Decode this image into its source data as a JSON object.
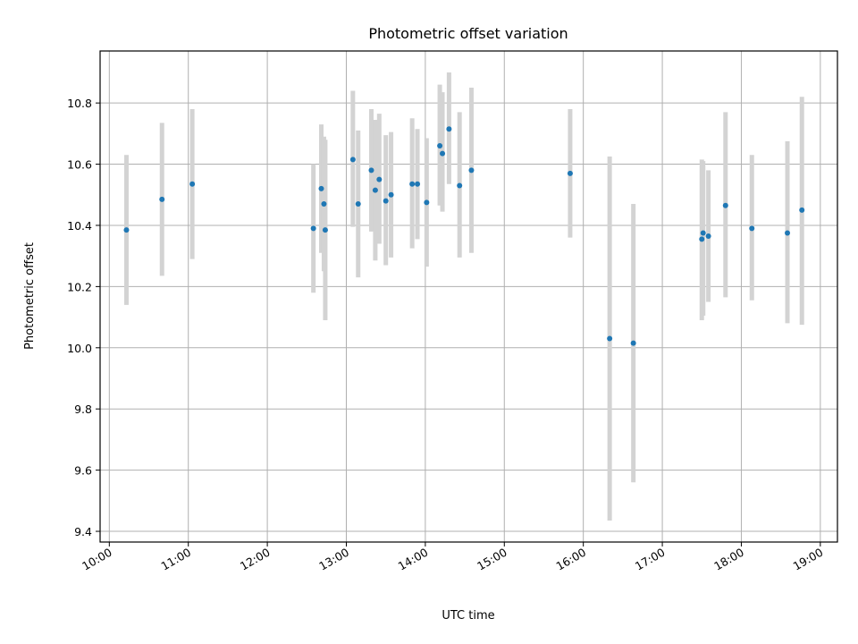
{
  "chart_data": {
    "type": "scatter",
    "title": "Photometric offset variation",
    "xlabel": "UTC time",
    "ylabel": "Photometric offset",
    "xlim": [
      "09:53",
      "19:13"
    ],
    "ylim": [
      9.365,
      10.97
    ],
    "grid": true,
    "x_ticks": [
      "10:00",
      "11:00",
      "12:00",
      "13:00",
      "14:00",
      "15:00",
      "16:00",
      "17:00",
      "18:00",
      "19:00"
    ],
    "y_ticks": [
      9.4,
      9.6,
      9.8,
      10.0,
      10.2,
      10.4,
      10.6,
      10.8
    ],
    "y_tick_labels": [
      "9.4",
      "9.6",
      "9.8",
      "10.0",
      "10.2",
      "10.4",
      "10.6",
      "10.8"
    ],
    "point_color": "#1f77b4",
    "errorbar_color": "#d3d3d3",
    "series": [
      {
        "points": [
          {
            "x": "10:13",
            "y": 10.385,
            "lo": 10.14,
            "hi": 10.63
          },
          {
            "x": "10:40",
            "y": 10.485,
            "lo": 10.235,
            "hi": 10.735
          },
          {
            "x": "11:03",
            "y": 10.535,
            "lo": 10.29,
            "hi": 10.78
          },
          {
            "x": "12:35",
            "y": 10.39,
            "lo": 10.18,
            "hi": 10.6
          },
          {
            "x": "12:41",
            "y": 10.52,
            "lo": 10.31,
            "hi": 10.73
          },
          {
            "x": "12:43",
            "y": 10.47,
            "lo": 10.25,
            "hi": 10.69
          },
          {
            "x": "12:44",
            "y": 10.385,
            "lo": 10.09,
            "hi": 10.68
          },
          {
            "x": "13:05",
            "y": 10.615,
            "lo": 10.395,
            "hi": 10.84
          },
          {
            "x": "13:09",
            "y": 10.47,
            "lo": 10.23,
            "hi": 10.71
          },
          {
            "x": "13:19",
            "y": 10.58,
            "lo": 10.38,
            "hi": 10.78
          },
          {
            "x": "13:22",
            "y": 10.515,
            "lo": 10.285,
            "hi": 10.745
          },
          {
            "x": "13:25",
            "y": 10.55,
            "lo": 10.34,
            "hi": 10.765
          },
          {
            "x": "13:30",
            "y": 10.48,
            "lo": 10.27,
            "hi": 10.695
          },
          {
            "x": "13:34",
            "y": 10.5,
            "lo": 10.295,
            "hi": 10.705
          },
          {
            "x": "13:50",
            "y": 10.535,
            "lo": 10.325,
            "hi": 10.75
          },
          {
            "x": "13:54",
            "y": 10.535,
            "lo": 10.355,
            "hi": 10.715
          },
          {
            "x": "14:01",
            "y": 10.475,
            "lo": 10.265,
            "hi": 10.685
          },
          {
            "x": "14:11",
            "y": 10.66,
            "lo": 10.465,
            "hi": 10.86
          },
          {
            "x": "14:13",
            "y": 10.635,
            "lo": 10.445,
            "hi": 10.835
          },
          {
            "x": "14:18",
            "y": 10.715,
            "lo": 10.535,
            "hi": 10.9
          },
          {
            "x": "14:26",
            "y": 10.53,
            "lo": 10.295,
            "hi": 10.77
          },
          {
            "x": "14:35",
            "y": 10.58,
            "lo": 10.31,
            "hi": 10.85
          },
          {
            "x": "15:50",
            "y": 10.57,
            "lo": 10.36,
            "hi": 10.78
          },
          {
            "x": "16:20",
            "y": 10.03,
            "lo": 9.435,
            "hi": 10.625
          },
          {
            "x": "16:38",
            "y": 10.015,
            "lo": 9.56,
            "hi": 10.47
          },
          {
            "x": "17:30",
            "y": 10.355,
            "lo": 10.09,
            "hi": 10.615
          },
          {
            "x": "17:31",
            "y": 10.375,
            "lo": 10.105,
            "hi": 10.61
          },
          {
            "x": "17:35",
            "y": 10.365,
            "lo": 10.15,
            "hi": 10.58
          },
          {
            "x": "17:48",
            "y": 10.465,
            "lo": 10.165,
            "hi": 10.77
          },
          {
            "x": "18:08",
            "y": 10.39,
            "lo": 10.155,
            "hi": 10.63
          },
          {
            "x": "18:35",
            "y": 10.375,
            "lo": 10.08,
            "hi": 10.675
          },
          {
            "x": "18:46",
            "y": 10.45,
            "lo": 10.075,
            "hi": 10.82
          }
        ]
      }
    ]
  }
}
